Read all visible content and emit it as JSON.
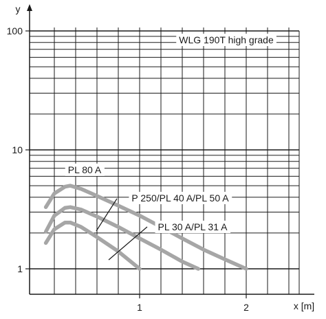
{
  "chart_data": {
    "type": "line",
    "title": "WLG 190T  high grade",
    "xlabel": "x [m]",
    "ylabel": "y",
    "xlim": [
      0,
      2.5
    ],
    "ylim": [
      1,
      100
    ],
    "y_scale": "log",
    "grid": true,
    "x_ticks": [
      {
        "value": 1,
        "label": "1"
      },
      {
        "value": 2,
        "label": "2"
      }
    ],
    "y_ticks": [
      {
        "value": 1,
        "label": "1"
      },
      {
        "value": 10,
        "label": "10"
      },
      {
        "value": 100,
        "label": "100"
      }
    ],
    "series": [
      {
        "name": "PL 80 A",
        "x": [
          0.12,
          0.2,
          0.3,
          0.35,
          0.45,
          0.6,
          0.8,
          1.0,
          1.2,
          1.4,
          1.6,
          1.8,
          2.0
        ],
        "y": [
          3.3,
          4.3,
          4.9,
          5.0,
          4.7,
          4.1,
          3.4,
          2.8,
          2.25,
          1.8,
          1.45,
          1.2,
          1.0
        ]
      },
      {
        "name": "P 250/PL 40 A/PL 50 A",
        "x": [
          0.12,
          0.2,
          0.3,
          0.35,
          0.45,
          0.6,
          0.8,
          1.0,
          1.2,
          1.4,
          1.55
        ],
        "y": [
          2.05,
          2.8,
          3.25,
          3.3,
          3.15,
          2.75,
          2.25,
          1.8,
          1.45,
          1.15,
          1.0
        ]
      },
      {
        "name": "PL 30 A/PL 31 A",
        "x": [
          0.12,
          0.2,
          0.3,
          0.35,
          0.45,
          0.6,
          0.8,
          1.0
        ],
        "y": [
          1.65,
          2.15,
          2.45,
          2.45,
          2.25,
          1.85,
          1.4,
          1.0
        ]
      }
    ],
    "annotations": [
      {
        "text": "PL 80 A"
      },
      {
        "text": "P 250/PL 40 A/PL 50 A"
      },
      {
        "text": "PL 30 A/PL 31 A"
      }
    ],
    "colors": {
      "curve": "#a6a6a6",
      "grid": "#1a1a1a",
      "axis": "#1a1a1a"
    }
  }
}
